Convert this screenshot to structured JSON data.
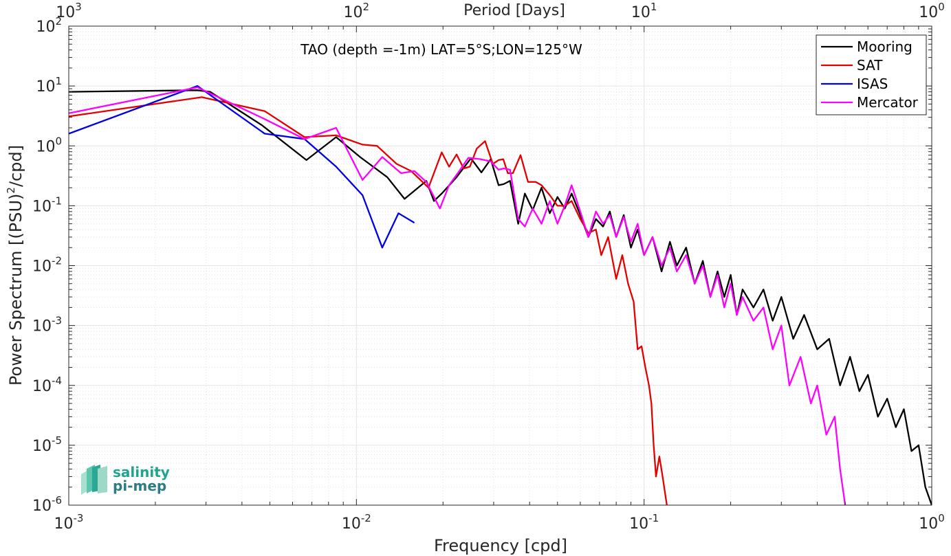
{
  "chart_data": {
    "type": "line",
    "title": "TAO (depth =-1m) LAT=5°S;LON=125°W",
    "xlabel": "Frequency [cpd]",
    "ylabel": "Power Spectrum [(PSU)",
    "ylabel_sup": "2",
    "ylabel_tail": "/cpd]",
    "top_xlabel": "Period [Days]",
    "x_scale": "log",
    "y_scale": "log",
    "xlim": [
      0.001,
      1
    ],
    "ylim": [
      1e-06,
      100
    ],
    "grid": true,
    "legend_position": "top-right",
    "x_ticks": [
      {
        "base": "10",
        "exp": "-3",
        "value": 0.001
      },
      {
        "base": "10",
        "exp": "-2",
        "value": 0.01
      },
      {
        "base": "10",
        "exp": "-1",
        "value": 0.1
      },
      {
        "base": "10",
        "exp": "0",
        "value": 1
      }
    ],
    "top_ticks": [
      {
        "base": "10",
        "exp": "3",
        "value": 0.001
      },
      {
        "base": "10",
        "exp": "2",
        "value": 0.01
      },
      {
        "base": "10",
        "exp": "1",
        "value": 0.1
      },
      {
        "base": "10",
        "exp": "0",
        "value": 1
      }
    ],
    "y_ticks": [
      {
        "base": "10",
        "exp": "2",
        "value": 100
      },
      {
        "base": "10",
        "exp": "1",
        "value": 10
      },
      {
        "base": "10",
        "exp": "0",
        "value": 1
      },
      {
        "base": "10",
        "exp": "-1",
        "value": 0.1
      },
      {
        "base": "10",
        "exp": "-2",
        "value": 0.01
      },
      {
        "base": "10",
        "exp": "-3",
        "value": 0.001
      },
      {
        "base": "10",
        "exp": "-4",
        "value": 0.0001
      },
      {
        "base": "10",
        "exp": "-5",
        "value": 1e-05
      },
      {
        "base": "10",
        "exp": "-6",
        "value": 1e-06
      }
    ],
    "series": [
      {
        "name": "Mooring",
        "color": "#000000",
        "points": [
          [
            0.001,
            8.0
          ],
          [
            0.0028,
            8.5
          ],
          [
            0.0031,
            8.0
          ],
          [
            0.0047,
            2.2
          ],
          [
            0.0067,
            0.58
          ],
          [
            0.0085,
            1.4
          ],
          [
            0.0103,
            0.65
          ],
          [
            0.0128,
            0.3
          ],
          [
            0.0147,
            0.13
          ],
          [
            0.0175,
            0.26
          ],
          [
            0.0186,
            0.12
          ],
          [
            0.0198,
            0.16
          ],
          [
            0.0223,
            0.3
          ],
          [
            0.025,
            0.62
          ],
          [
            0.0272,
            0.36
          ],
          [
            0.0293,
            0.6
          ],
          [
            0.0312,
            0.22
          ],
          [
            0.0325,
            0.23
          ],
          [
            0.0342,
            0.26
          ],
          [
            0.0365,
            0.05
          ],
          [
            0.0385,
            0.16
          ],
          [
            0.041,
            0.085
          ],
          [
            0.044,
            0.2
          ],
          [
            0.047,
            0.075
          ],
          [
            0.05,
            0.14
          ],
          [
            0.053,
            0.09
          ],
          [
            0.056,
            0.16
          ],
          [
            0.06,
            0.07
          ],
          [
            0.064,
            0.03
          ],
          [
            0.068,
            0.06
          ],
          [
            0.072,
            0.045
          ],
          [
            0.076,
            0.08
          ],
          [
            0.08,
            0.03
          ],
          [
            0.085,
            0.07
          ],
          [
            0.09,
            0.02
          ],
          [
            0.095,
            0.04
          ],
          [
            0.1,
            0.015
          ],
          [
            0.107,
            0.03
          ],
          [
            0.115,
            0.008
          ],
          [
            0.123,
            0.025
          ],
          [
            0.13,
            0.01
          ],
          [
            0.14,
            0.02
          ],
          [
            0.15,
            0.005
          ],
          [
            0.16,
            0.012
          ],
          [
            0.17,
            0.003
          ],
          [
            0.18,
            0.008
          ],
          [
            0.19,
            0.003
          ],
          [
            0.2,
            0.007
          ],
          [
            0.21,
            0.0015
          ],
          [
            0.22,
            0.004
          ],
          [
            0.24,
            0.002
          ],
          [
            0.26,
            0.004
          ],
          [
            0.28,
            0.0012
          ],
          [
            0.3,
            0.003
          ],
          [
            0.33,
            0.0006
          ],
          [
            0.36,
            0.0015
          ],
          [
            0.4,
            0.0004
          ],
          [
            0.44,
            0.0006
          ],
          [
            0.48,
            0.0001
          ],
          [
            0.52,
            0.0003
          ],
          [
            0.56,
            8e-05
          ],
          [
            0.6,
            0.00015
          ],
          [
            0.65,
            3e-05
          ],
          [
            0.7,
            6e-05
          ],
          [
            0.75,
            2e-05
          ],
          [
            0.8,
            4e-05
          ],
          [
            0.85,
            8e-06
          ],
          [
            0.9,
            1e-05
          ],
          [
            0.95,
            2e-06
          ],
          [
            1.0,
            1e-06
          ]
        ]
      },
      {
        "name": "SAT",
        "color": "#e50000",
        "points": [
          [
            0.001,
            3.1
          ],
          [
            0.0029,
            6.5
          ],
          [
            0.0048,
            3.8
          ],
          [
            0.0066,
            1.4
          ],
          [
            0.0085,
            1.5
          ],
          [
            0.0105,
            1.05
          ],
          [
            0.0118,
            1.0
          ],
          [
            0.0138,
            0.5
          ],
          [
            0.0155,
            0.38
          ],
          [
            0.0178,
            0.2
          ],
          [
            0.0198,
            0.78
          ],
          [
            0.021,
            0.45
          ],
          [
            0.0223,
            0.72
          ],
          [
            0.0236,
            0.42
          ],
          [
            0.0248,
            0.45
          ],
          [
            0.0262,
            0.9
          ],
          [
            0.028,
            1.2
          ],
          [
            0.0298,
            0.5
          ],
          [
            0.0312,
            0.58
          ],
          [
            0.0324,
            0.6
          ],
          [
            0.0336,
            0.35
          ],
          [
            0.035,
            0.35
          ],
          [
            0.0372,
            0.7
          ],
          [
            0.0395,
            0.25
          ],
          [
            0.042,
            0.25
          ],
          [
            0.044,
            0.22
          ],
          [
            0.047,
            0.15
          ],
          [
            0.05,
            0.1
          ],
          [
            0.053,
            0.1
          ],
          [
            0.056,
            0.12
          ],
          [
            0.06,
            0.06
          ],
          [
            0.064,
            0.035
          ],
          [
            0.068,
            0.04
          ],
          [
            0.071,
            0.015
          ],
          [
            0.075,
            0.03
          ],
          [
            0.08,
            0.006
          ],
          [
            0.084,
            0.015
          ],
          [
            0.088,
            0.005
          ],
          [
            0.092,
            0.0025
          ],
          [
            0.095,
            0.0004
          ],
          [
            0.098,
            0.00045
          ],
          [
            0.101,
            0.0002
          ],
          [
            0.104,
            0.0001
          ],
          [
            0.106,
            5e-05
          ],
          [
            0.108,
            1e-05
          ],
          [
            0.11,
            3e-06
          ],
          [
            0.113,
            6.5e-06
          ],
          [
            0.116,
            3e-06
          ],
          [
            0.12,
            1e-06
          ]
        ]
      },
      {
        "name": "ISAS",
        "color": "#0000e6",
        "points": [
          [
            0.001,
            1.6
          ],
          [
            0.0028,
            10.0
          ],
          [
            0.0048,
            1.6
          ],
          [
            0.0066,
            1.3
          ],
          [
            0.0085,
            0.45
          ],
          [
            0.0105,
            0.15
          ],
          [
            0.0123,
            0.02
          ],
          [
            0.014,
            0.075
          ],
          [
            0.0159,
            0.052
          ]
        ]
      },
      {
        "name": "Mercator",
        "color": "#ff00ff",
        "points": [
          [
            0.001,
            3.5
          ],
          [
            0.0028,
            9.5
          ],
          [
            0.0048,
            2.8
          ],
          [
            0.0066,
            1.3
          ],
          [
            0.0085,
            2.0
          ],
          [
            0.0105,
            0.27
          ],
          [
            0.0123,
            0.65
          ],
          [
            0.0143,
            0.35
          ],
          [
            0.0159,
            0.38
          ],
          [
            0.0175,
            0.25
          ],
          [
            0.0195,
            0.09
          ],
          [
            0.021,
            0.22
          ],
          [
            0.0225,
            0.35
          ],
          [
            0.0245,
            0.63
          ],
          [
            0.027,
            0.6
          ],
          [
            0.0293,
            0.55
          ],
          [
            0.0312,
            0.4
          ],
          [
            0.0325,
            0.42
          ],
          [
            0.0342,
            0.4
          ],
          [
            0.0365,
            0.06
          ],
          [
            0.0385,
            0.045
          ],
          [
            0.041,
            0.09
          ],
          [
            0.044,
            0.05
          ],
          [
            0.047,
            0.12
          ],
          [
            0.05,
            0.05
          ],
          [
            0.053,
            0.1
          ],
          [
            0.056,
            0.22
          ],
          [
            0.06,
            0.08
          ],
          [
            0.064,
            0.03
          ],
          [
            0.068,
            0.08
          ],
          [
            0.072,
            0.05
          ],
          [
            0.076,
            0.07
          ],
          [
            0.08,
            0.03
          ],
          [
            0.085,
            0.065
          ],
          [
            0.09,
            0.025
          ],
          [
            0.095,
            0.05
          ],
          [
            0.1,
            0.015
          ],
          [
            0.107,
            0.03
          ],
          [
            0.115,
            0.01
          ],
          [
            0.123,
            0.02
          ],
          [
            0.13,
            0.008
          ],
          [
            0.14,
            0.015
          ],
          [
            0.15,
            0.005
          ],
          [
            0.16,
            0.01
          ],
          [
            0.17,
            0.003
          ],
          [
            0.18,
            0.007
          ],
          [
            0.19,
            0.002
          ],
          [
            0.2,
            0.005
          ],
          [
            0.21,
            0.0015
          ],
          [
            0.22,
            0.003
          ],
          [
            0.24,
            0.0012
          ],
          [
            0.26,
            0.002
          ],
          [
            0.28,
            0.0004
          ],
          [
            0.3,
            0.001
          ],
          [
            0.32,
            0.0001
          ],
          [
            0.35,
            0.0003
          ],
          [
            0.38,
            5e-05
          ],
          [
            0.4,
            0.0001
          ],
          [
            0.43,
            1.5e-05
          ],
          [
            0.46,
            3e-05
          ],
          [
            0.48,
            4e-06
          ],
          [
            0.5,
            1e-06
          ]
        ]
      }
    ]
  },
  "logo": {
    "line1": "salinity",
    "line2": "pi-mep"
  }
}
